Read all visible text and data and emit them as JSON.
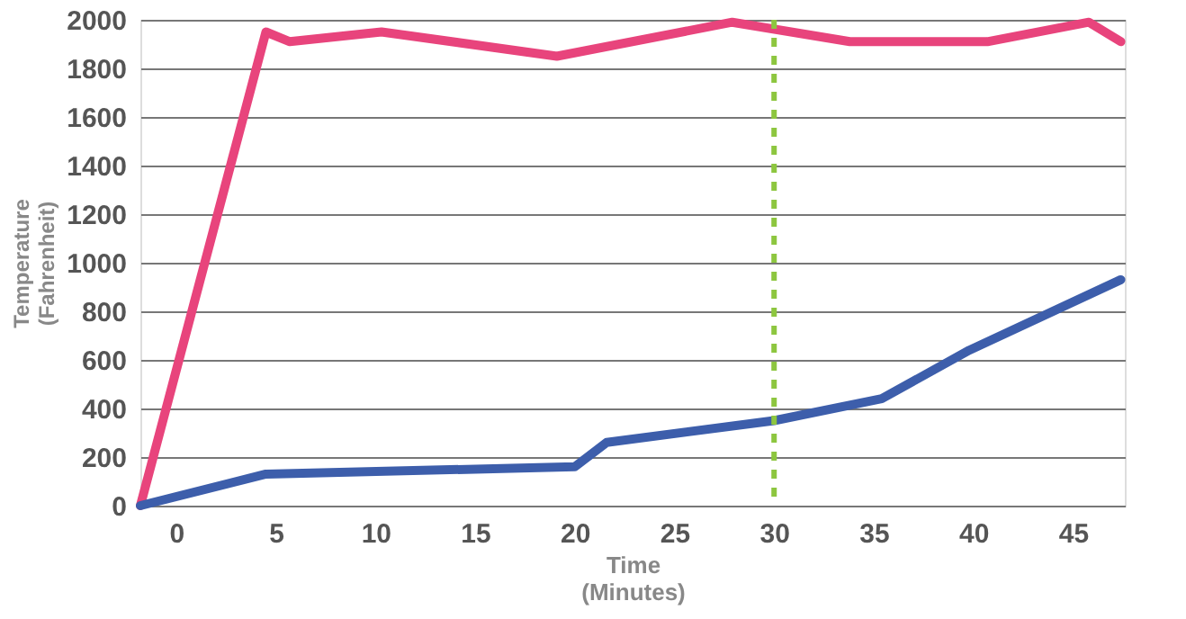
{
  "chart_data": {
    "type": "line",
    "xlabel": "Time\n(Minutes)",
    "ylabel": "Temperature\n(Fahrenheit)",
    "xlim": [
      -1.8,
      47.6
    ],
    "xticks": [
      0,
      5,
      10,
      15,
      20,
      25,
      30,
      35,
      40,
      45
    ],
    "ylim": [
      0,
      2000
    ],
    "yticks": [
      0,
      200,
      400,
      600,
      800,
      1000,
      1200,
      1400,
      1600,
      1800,
      2000
    ],
    "grid": "y",
    "line_style": "solid",
    "marker": "none",
    "series": [
      {
        "color": "#e8447c",
        "x": [
          -1.8,
          4.5,
          5.7,
          10.3,
          19.1,
          27.9,
          33.8,
          40.7,
          45.8,
          47.4
        ],
        "values": [
          0,
          1950,
          1910,
          1950,
          1850,
          1990,
          1910,
          1910,
          1990,
          1910
        ]
      },
      {
        "color": "#3d5eab",
        "x": [
          -1.8,
          4.5,
          20,
          21.6,
          30,
          35.4,
          39.8,
          47.4
        ],
        "values": [
          0,
          130,
          160,
          260,
          350,
          440,
          640,
          930
        ]
      }
    ],
    "ref_lines": [
      {
        "axis": "x",
        "value": 30,
        "color": "#8dc63f",
        "line_style": "dashed"
      }
    ]
  }
}
